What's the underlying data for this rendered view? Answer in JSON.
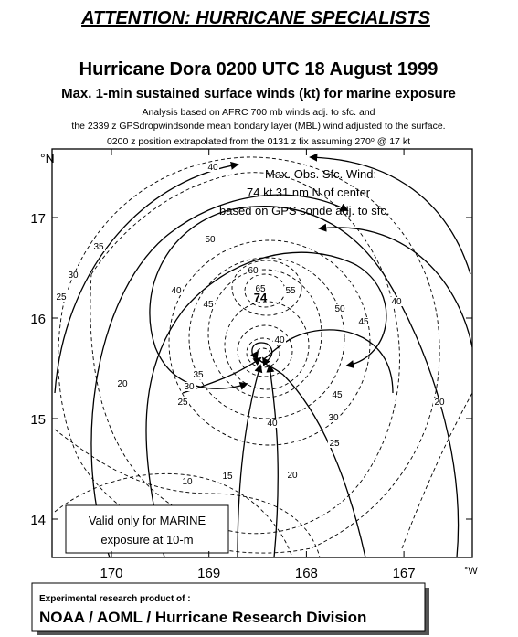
{
  "header": {
    "banner": "ATTENTION: HURRICANE SPECIALISTS",
    "title": "Hurricane Dora 0200 UTC 18 August 1999",
    "subtitle": "Max. 1-min sustained surface winds (kt) for marine exposure",
    "notes": [
      "Analysis based on AFRC 700 mb winds adj. to sfc. and",
      "the 2339 z  GPSdropwindsonde mean bondary layer (MBL) wind adjusted to the surface."
    ],
    "position_note": {
      "text": "0200 z position extrapolated from the 0131 z fix assuming 270",
      "sup": "o",
      "rest": " @ 17 kt"
    }
  },
  "map": {
    "lat_unit": "°N",
    "lon_unit": "°W",
    "lat_ticks": [
      17,
      16,
      15,
      14
    ],
    "lon_ticks": [
      170,
      169,
      168,
      167
    ],
    "max_wind_box": [
      "Max. Obs. Sfc. Wind:",
      "74 kt  31 nm N of center",
      "based on GPS sonde adj. to sfc."
    ],
    "valid_box": [
      "Valid only for MARINE",
      "exposure at 10-m"
    ],
    "contour_labels": [
      40,
      35,
      30,
      25,
      50,
      60,
      65,
      55,
      45,
      40,
      50,
      45,
      40,
      40,
      35,
      30,
      25,
      20,
      45,
      40,
      30,
      25,
      20,
      15,
      10,
      20
    ],
    "max_obs_label": 74
  },
  "footer": {
    "line1": "Experimental research product of :",
    "line2": "NOAA / AOML / Hurricane Research Division"
  }
}
